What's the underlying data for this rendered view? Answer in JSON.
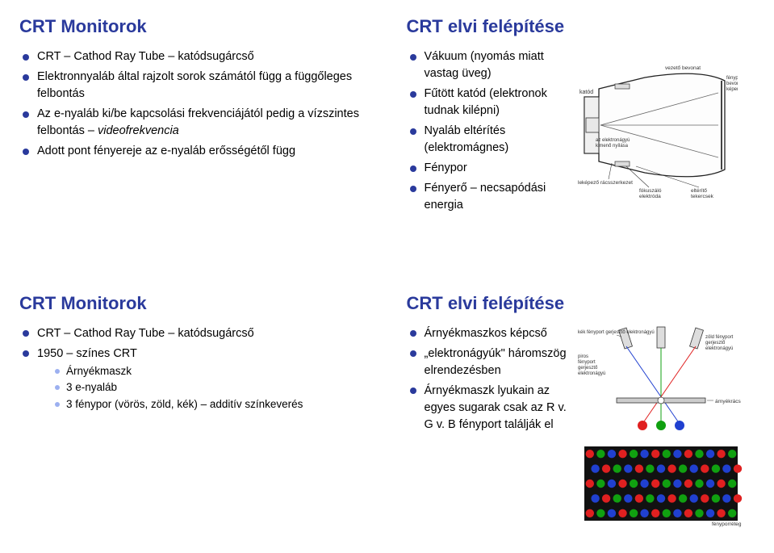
{
  "panels": {
    "tl": {
      "title": "CRT Monitorok",
      "items": [
        {
          "text": "CRT – Cathod Ray Tube – katódsugárcső"
        },
        {
          "text": "Elektronnyaláb által rajzolt sorok számától függ a függőleges felbontás"
        },
        {
          "text1": "Az e-nyaláb ki/be kapcsolási frekvenciájától pedig a vízszintes felbontás – ",
          "ital": "videofrekvencia"
        },
        {
          "text": "Adott pont fényereje az e-nyaláb erősségétől függ"
        }
      ]
    },
    "tr": {
      "title": "CRT elvi felépítése",
      "items": [
        {
          "text": "Vákuum (nyomás miatt vastag üveg)"
        },
        {
          "text": "Fűtött katód (elektronok tudnak kilépni)"
        },
        {
          "text": "Nyaláb eltérítés (elektromágnes)"
        },
        {
          "text": "Fénypor"
        },
        {
          "text": "Fényerő – necsapódási energia"
        }
      ],
      "diagram_labels": {
        "katod": "katód",
        "bevonat": "vezető bevonat",
        "fenypor": "fénypor bevonat, képernyő",
        "elektronagyu": "az elektronágyú kimenő nyílása",
        "lekepzo": "leképező rácsszerkezet",
        "fokuszalo": "fókuszáló elektróda",
        "elterito": "eltérítő tekercsek"
      }
    },
    "bl": {
      "title": "CRT Monitorok",
      "items": [
        {
          "text": "CRT – Cathod Ray Tube – katódsugárcső"
        },
        {
          "text": "1950 – színes CRT"
        }
      ],
      "subitems": [
        {
          "text": "Árnyékmaszk"
        },
        {
          "text": "3 e-nyaláb"
        },
        {
          "text": "3 fénypor (vörös, zöld, kék) – additív színkeverés"
        }
      ]
    },
    "br": {
      "title": "CRT elvi felépítése",
      "items": [
        {
          "text": "Árnyékmaszkos képcső"
        },
        {
          "text": "„elektronágyúk\" háromszög elrendezésben"
        },
        {
          "text": "Árnyékmaszk lyukain az egyes sugarak csak az R v. G v. B fényport találják el"
        }
      ],
      "diagram_labels": {
        "kek": "kék fényport gerjesztő elektronágyú",
        "zold": "zöld fényport gerjesztő elektronágyú",
        "piros": "piros fényport gerjesztő elektronágyú",
        "arnyek": "árnyékrács",
        "fenyreteg": "fényporréteg"
      }
    }
  },
  "colors": {
    "title": "#2a3a9c",
    "bullet_main": "#2a3a9c",
    "bullet_sub": "#9cb0f0",
    "text": "#000000",
    "background": "#ffffff",
    "red": "#e02020",
    "green": "#10a010",
    "blue": "#2040d0",
    "gray_line": "#888888"
  }
}
